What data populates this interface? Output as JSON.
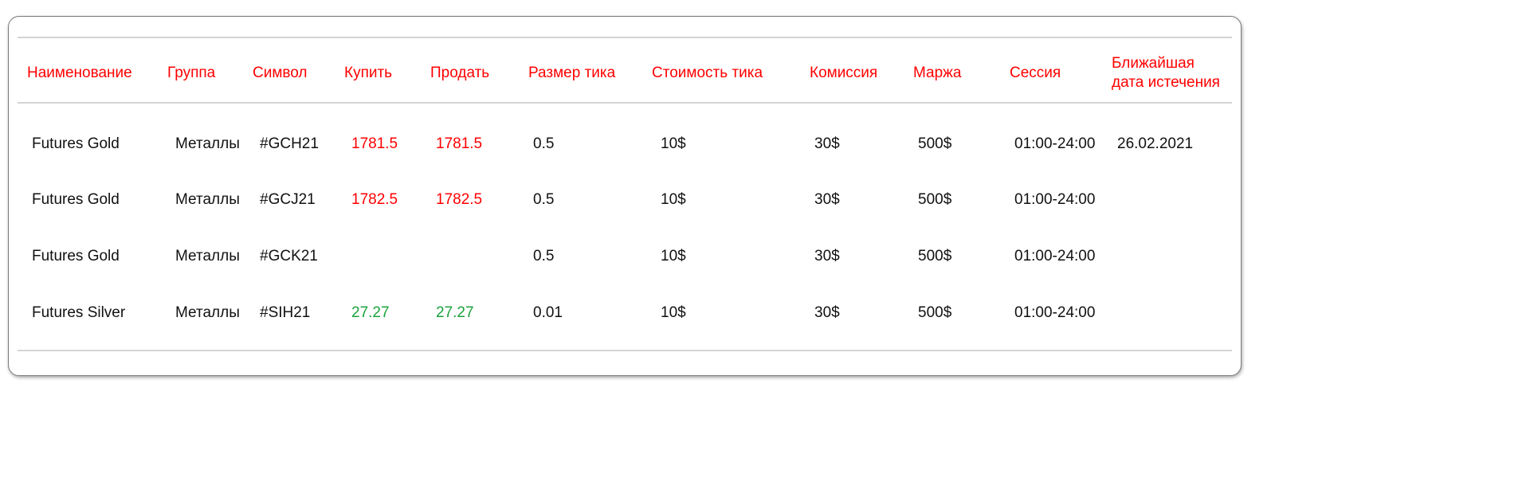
{
  "colors": {
    "header": "#ff0000",
    "price_up": "#ff0000",
    "price_down": "#1aa33c"
  },
  "headers": [
    "Наименование",
    "Группа",
    "Символ",
    "Купить",
    "Продать",
    "Размер тика",
    "Стоимость тика",
    "Комиссия",
    "Маржа",
    "Сессия",
    "Ближайшая\nдата истечения"
  ],
  "header_expiry_line1": "Ближайшая",
  "header_expiry_line2": "дата истечения",
  "rows": [
    {
      "name": "Futures Gold",
      "group": "Металлы",
      "symbol": "#GCH21",
      "buy": "1781.5",
      "sell": "1781.5",
      "price_color": "red",
      "tick_size": "0.5",
      "tick_value": "10$",
      "commission": "30$",
      "margin": "500$",
      "session": "01:00-24:00",
      "expiry": "26.02.2021"
    },
    {
      "name": "Futures Gold",
      "group": "Металлы",
      "symbol": "#GCJ21",
      "buy": "1782.5",
      "sell": "1782.5",
      "price_color": "red",
      "tick_size": "0.5",
      "tick_value": "10$",
      "commission": "30$",
      "margin": "500$",
      "session": "01:00-24:00",
      "expiry": ""
    },
    {
      "name": "Futures Gold",
      "group": "Металлы",
      "symbol": "#GCK21",
      "buy": "",
      "sell": "",
      "price_color": "red",
      "tick_size": "0.5",
      "tick_value": "10$",
      "commission": "30$",
      "margin": "500$",
      "session": "01:00-24:00",
      "expiry": ""
    },
    {
      "name": "Futures Silver",
      "group": "Металлы",
      "symbol": "#SIH21",
      "buy": "27.27",
      "sell": "27.27",
      "price_color": "green",
      "tick_size": "0.01",
      "tick_value": "10$",
      "commission": "30$",
      "margin": "500$",
      "session": "01:00-24:00",
      "expiry": ""
    }
  ]
}
